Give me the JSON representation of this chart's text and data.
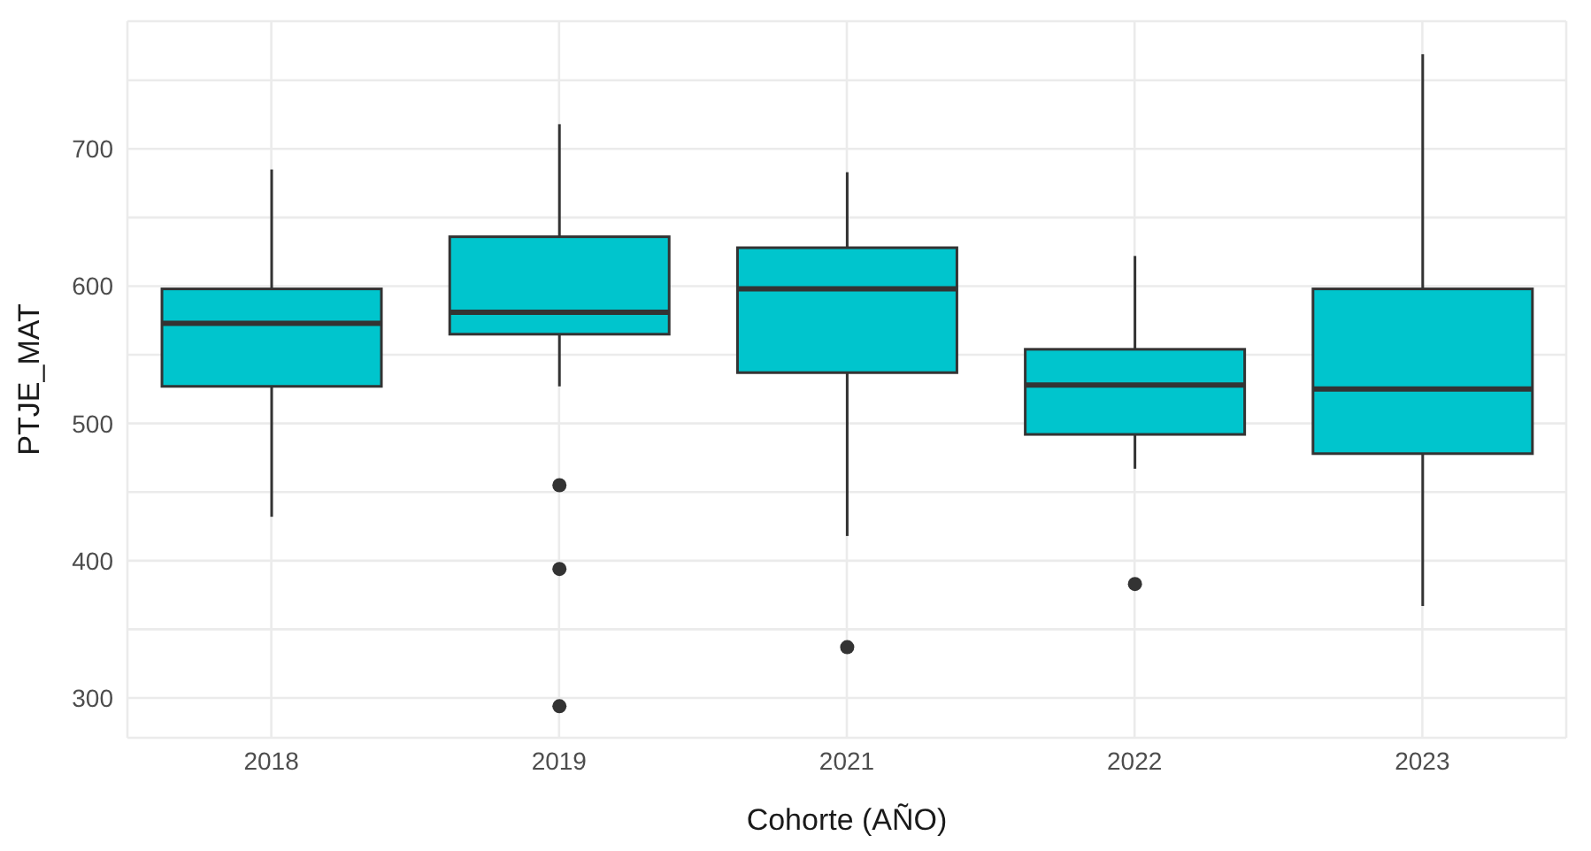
{
  "chart_data": {
    "type": "box",
    "xlabel": "Cohorte (AÑO)",
    "ylabel": "PTJE_MAT",
    "categories": [
      "2018",
      "2019",
      "2021",
      "2022",
      "2023"
    ],
    "color": "#00c5cd",
    "boxes": [
      {
        "low": 432,
        "q1": 527,
        "median": 573,
        "q3": 598,
        "high": 685
      },
      {
        "low": 527,
        "q1": 565,
        "median": 581,
        "q3": 636,
        "high": 718,
        "outliers": [
          455,
          394,
          294
        ]
      },
      {
        "low": 418,
        "q1": 537,
        "median": 598,
        "q3": 628,
        "high": 683,
        "outliers": [
          337
        ]
      },
      {
        "low": 467,
        "q1": 492,
        "median": 528,
        "q3": 554,
        "high": 622,
        "outliers": [
          383
        ]
      },
      {
        "low": 367,
        "q1": 478,
        "median": 525,
        "q3": 598,
        "high": 769
      }
    ],
    "ylim": [
      271,
      793
    ],
    "yticks": [
      300,
      {
        "value": 350,
        "label": null
      },
      400,
      {
        "value": 450,
        "label": null
      },
      500,
      {
        "value": 550,
        "label": null
      },
      600,
      {
        "value": 650,
        "label": null
      },
      700,
      {
        "value": 750,
        "label": null
      }
    ],
    "grid": true
  }
}
